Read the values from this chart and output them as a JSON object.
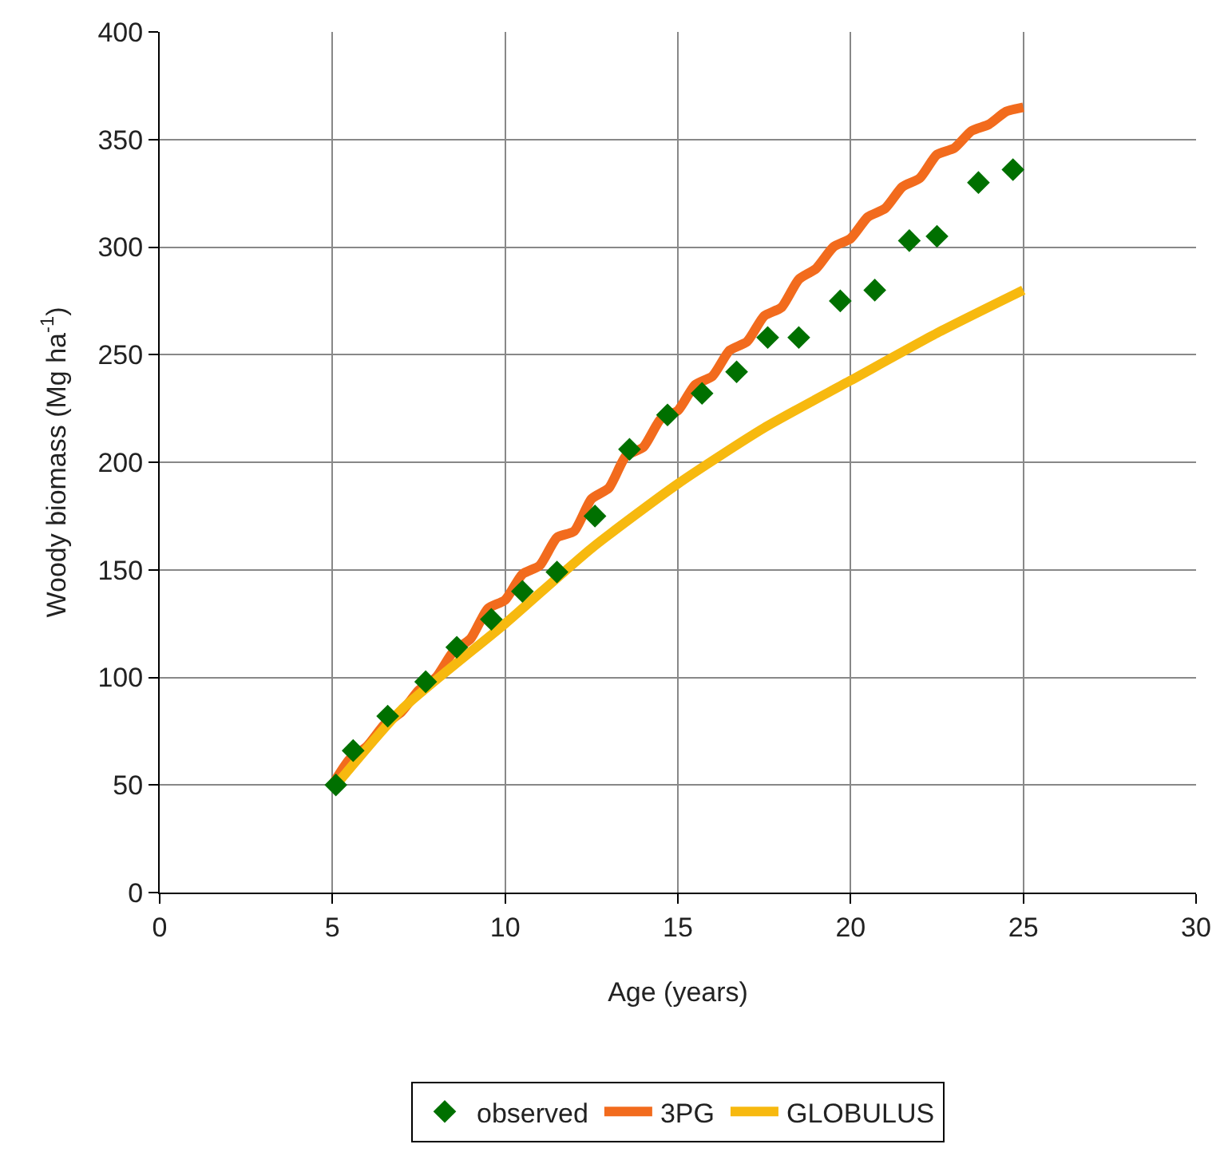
{
  "chart_data": {
    "type": "line",
    "xlabel": "Age (years)",
    "ylabel": "Woody biomass (Mg ha$^{-1}$)",
    "xlim": [
      0,
      30
    ],
    "xticks": [
      0,
      5,
      10,
      15,
      20,
      25,
      30
    ],
    "ylim": [
      0,
      400
    ],
    "yticks": [
      0,
      50,
      100,
      150,
      200,
      250,
      300,
      350,
      400
    ],
    "grid": true,
    "legend": "bottom",
    "series": [
      {
        "name": "observed",
        "type": "scatter",
        "marker": "diamond",
        "color": "#007000",
        "x": [
          5.1,
          5.6,
          6.6,
          7.7,
          8.6,
          9.6,
          10.5,
          11.5,
          12.6,
          13.6,
          14.7,
          15.7,
          16.7,
          17.6,
          18.5,
          19.7,
          20.7,
          21.7,
          22.5,
          23.7,
          24.7
        ],
        "values": [
          50,
          66,
          82,
          98,
          114,
          127,
          140,
          149,
          175,
          206,
          222,
          232,
          242,
          258,
          258,
          275,
          280,
          303,
          305,
          330,
          336
        ]
      },
      {
        "name": "3PG",
        "color": "#f26b1d",
        "x": [
          5,
          5.5,
          6,
          6.5,
          7,
          7.5,
          8,
          8.5,
          9,
          9.5,
          10,
          10.5,
          11,
          11.5,
          12,
          12.5,
          13,
          13.5,
          14,
          14.5,
          15,
          15.5,
          16,
          16.5,
          17,
          17.5,
          18,
          18.5,
          19,
          19.5,
          20,
          20.5,
          21,
          21.5,
          22,
          22.5,
          23,
          23.5,
          24,
          24.5,
          25
        ],
        "values": [
          50,
          62,
          68,
          78,
          84,
          94,
          100,
          112,
          118,
          132,
          136,
          148,
          152,
          165,
          168,
          183,
          188,
          203,
          207,
          220,
          224,
          236,
          240,
          252,
          256,
          268,
          272,
          285,
          290,
          300,
          304,
          314,
          318,
          328,
          332,
          343,
          346,
          354,
          357,
          363,
          365
        ]
      },
      {
        "name": "GLOBULUS",
        "color": "#f7b90f",
        "x": [
          5,
          7,
          10,
          12.5,
          15,
          17.5,
          20,
          22.5,
          25
        ],
        "values": [
          48,
          85,
          125,
          160,
          190,
          216,
          238,
          260,
          280
        ]
      }
    ]
  }
}
